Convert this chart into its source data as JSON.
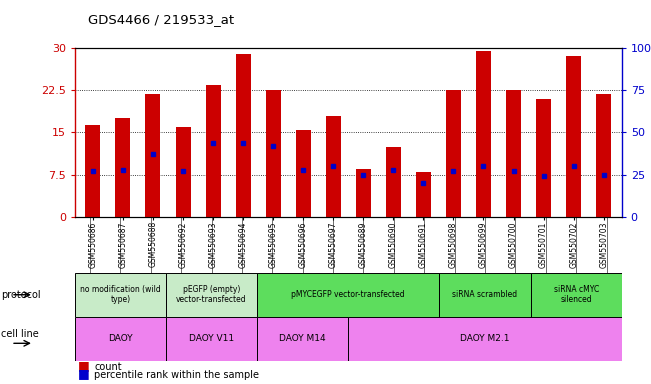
{
  "title": "GDS4466 / 219533_at",
  "samples": [
    "GSM550686",
    "GSM550687",
    "GSM550688",
    "GSM550692",
    "GSM550693",
    "GSM550694",
    "GSM550695",
    "GSM550696",
    "GSM550697",
    "GSM550689",
    "GSM550690",
    "GSM550691",
    "GSM550698",
    "GSM550699",
    "GSM550700",
    "GSM550701",
    "GSM550702",
    "GSM550703"
  ],
  "counts": [
    16.3,
    17.5,
    21.8,
    16.0,
    23.5,
    29.0,
    22.5,
    15.5,
    18.0,
    8.5,
    12.5,
    8.0,
    22.5,
    29.5,
    22.5,
    21.0,
    28.5,
    21.8
  ],
  "percentiles": [
    27,
    28,
    37,
    27,
    44,
    44,
    42,
    28,
    30,
    25,
    28,
    20,
    27,
    30,
    27,
    24,
    30,
    25
  ],
  "ylim_left": [
    0,
    30
  ],
  "ylim_right": [
    0,
    100
  ],
  "yticks_left": [
    0,
    7.5,
    15,
    22.5,
    30
  ],
  "yticks_right": [
    0,
    25,
    50,
    75,
    100
  ],
  "bar_color": "#cc0000",
  "dot_color": "#0000cc",
  "bar_width": 0.5,
  "protocols": [
    {
      "label": "no modification (wild\ntype)",
      "start": 0,
      "end": 3,
      "color": "#c8ebc8"
    },
    {
      "label": "pEGFP (empty)\nvector-transfected",
      "start": 3,
      "end": 6,
      "color": "#c8ebc8"
    },
    {
      "label": "pMYCEGFP vector-transfected",
      "start": 6,
      "end": 12,
      "color": "#5ddd5d"
    },
    {
      "label": "siRNA scrambled",
      "start": 12,
      "end": 15,
      "color": "#5ddd5d"
    },
    {
      "label": "siRNA cMYC\nsilenced",
      "start": 15,
      "end": 18,
      "color": "#5ddd5d"
    }
  ],
  "cell_lines": [
    {
      "label": "DAOY",
      "start": 0,
      "end": 3
    },
    {
      "label": "DAOY V11",
      "start": 3,
      "end": 6
    },
    {
      "label": "DAOY M14",
      "start": 6,
      "end": 9
    },
    {
      "label": "DAOY M2.1",
      "start": 9,
      "end": 18
    }
  ],
  "cell_line_color": "#ee82ee",
  "bg_color": "#e8e8e8",
  "plot_bg": "#ffffff",
  "left_axis_color": "#cc0000",
  "right_axis_color": "#0000cc"
}
